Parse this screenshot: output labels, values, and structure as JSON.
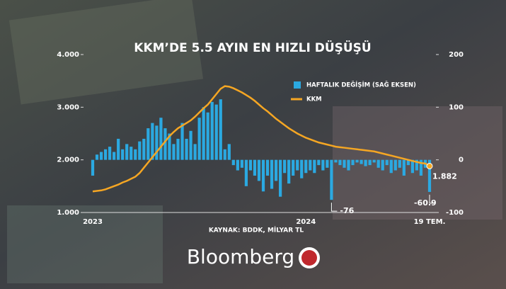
{
  "chart_data": {
    "type": "bar",
    "title": "KKM’DE 5.5 AYIN EN HIZLI DÜŞÜŞÜ",
    "source": "KAYNAK: BDDK, MİLYAR TL",
    "brand": "Bloomberg",
    "categories": [
      "2023",
      null,
      null,
      null,
      null,
      null,
      null,
      null,
      null,
      null,
      null,
      null,
      null,
      null,
      null,
      null,
      null,
      null,
      null,
      null,
      null,
      null,
      null,
      null,
      null,
      null,
      null,
      null,
      null,
      null,
      null,
      null,
      null,
      null,
      null,
      null,
      null,
      null,
      null,
      null,
      null,
      null,
      null,
      null,
      null,
      null,
      null,
      null,
      null,
      null,
      "2024",
      null,
      null,
      null,
      null,
      null,
      null,
      null,
      null,
      null,
      null,
      null,
      null,
      null,
      null,
      null,
      null,
      null,
      null,
      null,
      null,
      null,
      null,
      null,
      null,
      null,
      null,
      null,
      null,
      "19 TEM."
    ],
    "ylim": [
      1000,
      4000
    ],
    "yticks": [
      {
        "value": 1000,
        "label": "1.000"
      },
      {
        "value": 2000,
        "label": "2.000"
      },
      {
        "value": 3000,
        "label": "3.000"
      },
      {
        "value": 4000,
        "label": "4.000"
      }
    ],
    "y2lim": [
      -100,
      200
    ],
    "y2ticks": [
      -100,
      0,
      100,
      200
    ],
    "legend": "top-right",
    "series": [
      {
        "name": "HAFTALIK DEĞİŞİM (SAĞ EKSEN)",
        "type": "bar",
        "axis": "y2",
        "color": "#2ba9e1",
        "values": [
          -30,
          10,
          15,
          20,
          25,
          15,
          40,
          20,
          30,
          25,
          20,
          35,
          40,
          60,
          70,
          65,
          80,
          60,
          50,
          30,
          40,
          70,
          40,
          55,
          30,
          80,
          100,
          90,
          110,
          105,
          115,
          20,
          30,
          -10,
          -20,
          -15,
          -50,
          -20,
          -30,
          -40,
          -60,
          -30,
          -55,
          -40,
          -70,
          -25,
          -45,
          -30,
          -20,
          -35,
          -25,
          -20,
          -25,
          -10,
          -20,
          -15,
          -76,
          -5,
          -10,
          -15,
          -20,
          -10,
          -5,
          -8,
          -12,
          -10,
          -5,
          -15,
          -20,
          -10,
          -25,
          -20,
          -15,
          -30,
          -10,
          -25,
          -20,
          -30,
          -15,
          -60.9
        ],
        "value_labels": [
          null,
          null,
          null,
          null,
          null,
          null,
          null,
          null,
          null,
          null,
          null,
          null,
          null,
          null,
          null,
          null,
          null,
          null,
          null,
          null,
          null,
          null,
          null,
          null,
          null,
          null,
          null,
          null,
          null,
          null,
          null,
          null,
          null,
          null,
          null,
          null,
          null,
          null,
          null,
          null,
          null,
          null,
          null,
          null,
          null,
          null,
          null,
          null,
          null,
          null,
          null,
          null,
          null,
          null,
          null,
          null,
          "-76",
          null,
          null,
          null,
          null,
          null,
          null,
          null,
          null,
          null,
          null,
          null,
          null,
          null,
          null,
          null,
          null,
          null,
          null,
          null,
          null,
          null,
          null,
          "-60.9"
        ]
      },
      {
        "name": "KKM",
        "type": "line",
        "color": "#f5a623",
        "values": [
          1400,
          1410,
          1420,
          1440,
          1470,
          1500,
          1530,
          1570,
          1600,
          1640,
          1680,
          1750,
          1850,
          1950,
          2050,
          2150,
          2250,
          2350,
          2450,
          2530,
          2600,
          2650,
          2700,
          2750,
          2820,
          2900,
          2980,
          3050,
          3150,
          3250,
          3350,
          3400,
          3390,
          3360,
          3320,
          3280,
          3230,
          3180,
          3120,
          3050,
          2980,
          2920,
          2850,
          2780,
          2720,
          2660,
          2600,
          2550,
          2500,
          2460,
          2420,
          2390,
          2360,
          2330,
          2310,
          2290,
          2270,
          2250,
          2240,
          2230,
          2220,
          2210,
          2200,
          2190,
          2180,
          2170,
          2160,
          2140,
          2120,
          2100,
          2080,
          2060,
          2040,
          2020,
          2000,
          1980,
          1960,
          1940,
          1930,
          1882
        ],
        "value_labels": [
          null,
          null,
          null,
          null,
          null,
          null,
          null,
          null,
          null,
          null,
          null,
          null,
          null,
          null,
          null,
          null,
          null,
          null,
          null,
          null,
          null,
          null,
          null,
          null,
          null,
          null,
          null,
          null,
          null,
          null,
          null,
          null,
          null,
          null,
          null,
          null,
          null,
          null,
          null,
          null,
          null,
          null,
          null,
          null,
          null,
          null,
          null,
          null,
          null,
          null,
          null,
          null,
          null,
          null,
          null,
          null,
          null,
          null,
          null,
          null,
          null,
          null,
          null,
          null,
          null,
          null,
          null,
          null,
          null,
          null,
          null,
          null,
          null,
          null,
          null,
          null,
          null,
          null,
          null,
          "1.882"
        ]
      }
    ]
  }
}
